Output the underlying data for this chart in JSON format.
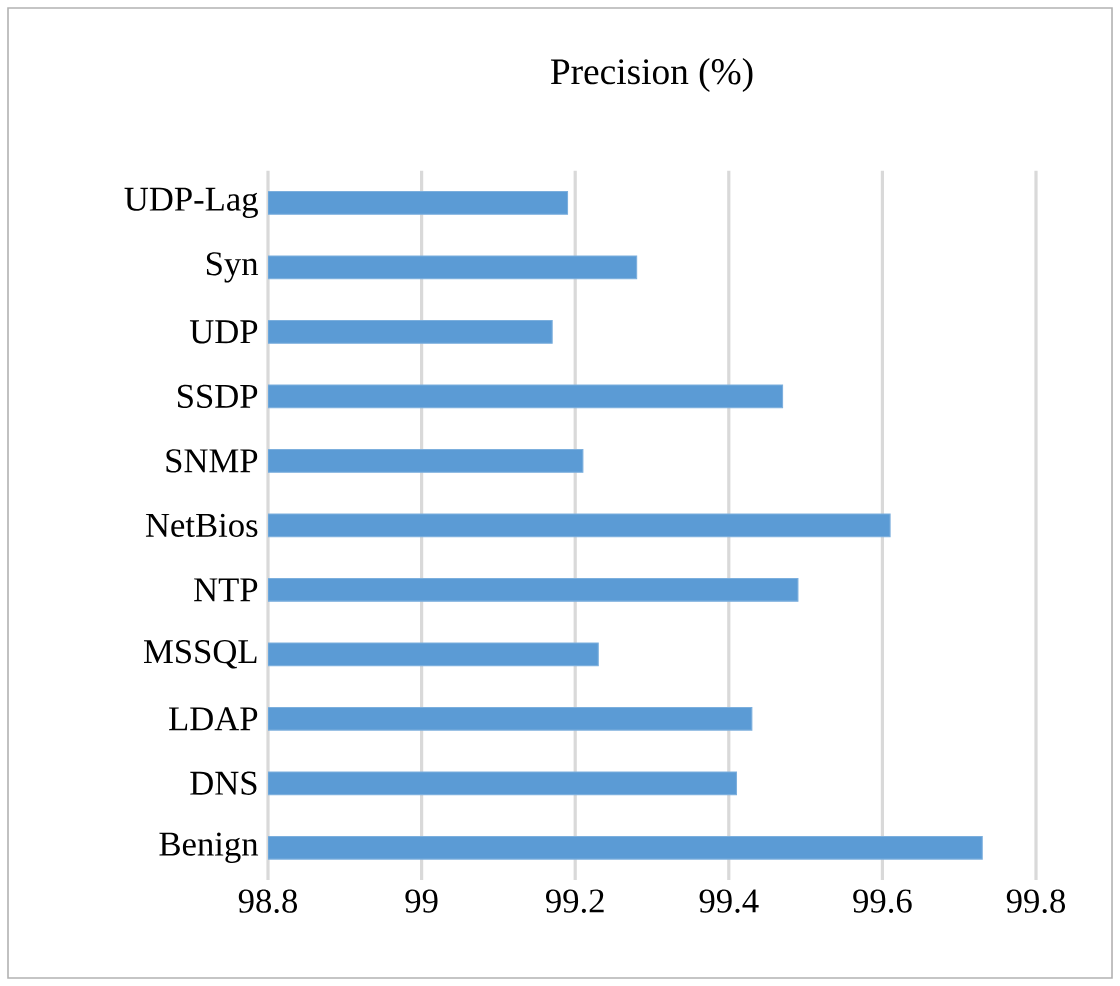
{
  "chart_data": {
    "type": "bar",
    "orientation": "horizontal",
    "title": "Precision (%)",
    "categories": [
      "UDP-Lag",
      "Syn",
      "UDP",
      "SSDP",
      "SNMP",
      "NetBios",
      "NTP",
      "MSSQL",
      "LDAP",
      "DNS",
      "Benign"
    ],
    "values": [
      99.19,
      99.28,
      99.17,
      99.47,
      99.21,
      99.61,
      99.49,
      99.23,
      99.43,
      99.41,
      99.73
    ],
    "color": "#5b9bd5",
    "xlim": [
      98.8,
      99.8
    ],
    "xticks": [
      98.8,
      99,
      99.2,
      99.4,
      99.6,
      99.8
    ],
    "grid": "x"
  }
}
